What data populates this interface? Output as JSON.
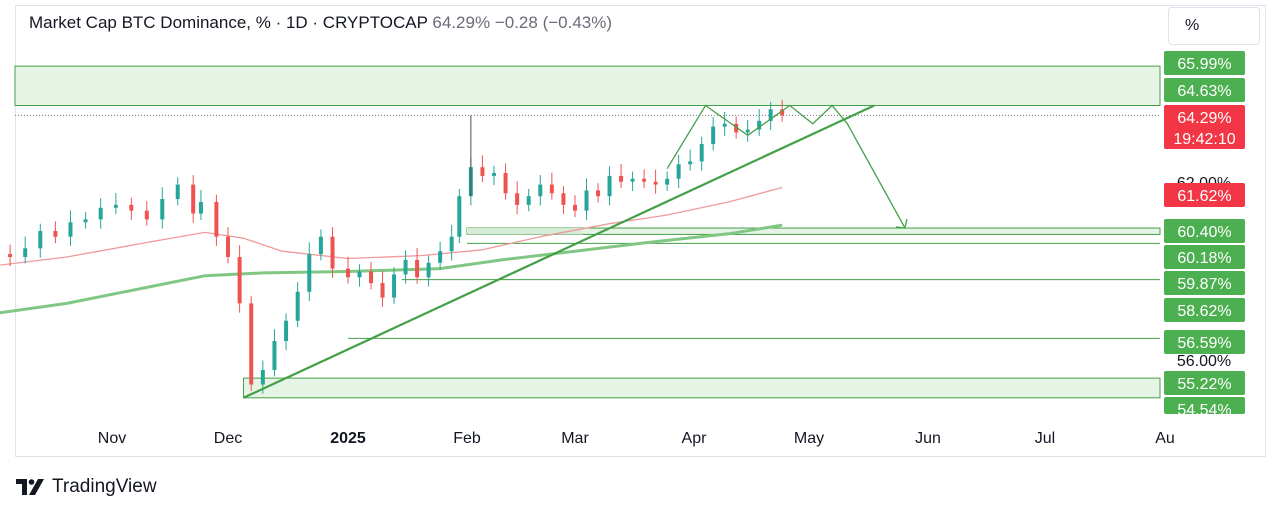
{
  "header": {
    "title": "Market Cap BTC Dominance, % · 1D · CRYPTOCAP",
    "last_value": "64.29%",
    "change": "−0.28 (−0.43%)"
  },
  "unit_button": {
    "label": "%"
  },
  "brand": {
    "name": "TradingView",
    "icon": "tradingview-logo-icon"
  },
  "colors": {
    "up": "#26a69a",
    "down": "#ef5350",
    "drawing_green": "#43a047",
    "zone_fill": "#e6f4e6",
    "ma_fast": "#ef9a9a",
    "ma_slow": "#81c784",
    "label_green": "#4caf50",
    "label_red": "#f23645"
  },
  "chart_data": {
    "type": "candlestick",
    "title": "Market Cap BTC Dominance, %",
    "interval": "1D",
    "source": "CRYPTOCAP",
    "x_axis": {
      "labels": [
        "Nov",
        "Dec",
        "2025",
        "Feb",
        "Mar",
        "Apr",
        "May",
        "Jun",
        "Jul",
        "Au"
      ],
      "bold": [
        "2025"
      ],
      "dates": [
        "2024-11-01",
        "2024-12-01",
        "2025-01-01",
        "2025-02-01",
        "2025-03-01",
        "2025-04-01",
        "2025-05-01",
        "2025-06-01",
        "2025-07-01",
        "2025-08-01"
      ]
    },
    "y_axis": {
      "unit": "%",
      "range": [
        54.2,
        66.6
      ],
      "partial_labels": [
        "62.00%",
        "56.00%"
      ]
    },
    "price_labels": [
      {
        "text": "65.99%",
        "value": 65.99,
        "color": "green"
      },
      {
        "text": "64.63%",
        "value": 64.63,
        "color": "green"
      },
      {
        "text": "64.29%",
        "sub": "19:42:10",
        "value": 64.29,
        "color": "red"
      },
      {
        "text": "61.62%",
        "value": 61.62,
        "color": "red"
      },
      {
        "text": "60.40%",
        "value": 60.4,
        "color": "green"
      },
      {
        "text": "60.18%",
        "value": 60.18,
        "color": "green"
      },
      {
        "text": "59.87%",
        "value": 59.87,
        "color": "green"
      },
      {
        "text": "58.62%",
        "value": 58.62,
        "color": "green"
      },
      {
        "text": "56.59%",
        "value": 56.59,
        "color": "green"
      },
      {
        "text": "55.22%",
        "value": 55.22,
        "color": "green"
      },
      {
        "text": "54.54%",
        "value": 54.54,
        "color": "green"
      }
    ],
    "last_price": {
      "value": 64.29,
      "countdown": "19:42:10"
    },
    "zones": [
      {
        "top": 65.99,
        "bottom": 64.63
      },
      {
        "top": 60.4,
        "bottom": 60.18
      },
      {
        "top": 55.22,
        "bottom": 54.54
      }
    ],
    "horizontal_lines": [
      59.87,
      58.62,
      56.59
    ],
    "small_zone": {
      "from": "2025-02-01",
      "to": "2025-03-03",
      "top": 60.4,
      "bottom": 60.18
    },
    "trendline": {
      "from": {
        "date": "2024-12-05",
        "value": 54.54
      },
      "to": {
        "date": "2025-05-18",
        "value": 64.63
      }
    },
    "pattern_path": [
      {
        "date": "2025-03-25",
        "value": 62.45
      },
      {
        "date": "2025-04-04",
        "value": 64.63
      },
      {
        "date": "2025-04-15",
        "value": 63.6
      },
      {
        "date": "2025-04-26",
        "value": 64.63
      },
      {
        "date": "2025-05-02",
        "value": 64.0
      },
      {
        "date": "2025-05-07",
        "value": 64.63
      },
      {
        "date": "2025-05-11",
        "value": 64.0
      },
      {
        "date": "2025-05-26",
        "value": 60.4
      }
    ],
    "arrow_end": {
      "date": "2025-05-26",
      "value": 60.4
    },
    "moving_averages": [
      {
        "color": "red",
        "points": [
          [
            "2024-10-01",
            59.1
          ],
          [
            "2024-10-20",
            59.4
          ],
          [
            "2024-11-10",
            59.9
          ],
          [
            "2024-11-25",
            60.25
          ],
          [
            "2024-12-05",
            60.05
          ],
          [
            "2024-12-15",
            59.6
          ],
          [
            "2025-01-01",
            59.35
          ],
          [
            "2025-01-20",
            59.45
          ],
          [
            "2025-02-05",
            59.65
          ],
          [
            "2025-02-20",
            60.1
          ],
          [
            "2025-03-10",
            60.55
          ],
          [
            "2025-03-25",
            60.85
          ],
          [
            "2025-04-10",
            61.3
          ],
          [
            "2025-04-24",
            61.8
          ]
        ]
      },
      {
        "color": "green",
        "points": [
          [
            "2024-10-01",
            57.45
          ],
          [
            "2024-10-20",
            57.8
          ],
          [
            "2024-11-10",
            58.35
          ],
          [
            "2024-11-25",
            58.75
          ],
          [
            "2024-12-10",
            58.85
          ],
          [
            "2025-01-01",
            58.9
          ],
          [
            "2025-01-25",
            59.0
          ],
          [
            "2025-02-10",
            59.3
          ],
          [
            "2025-03-01",
            59.6
          ],
          [
            "2025-03-20",
            59.9
          ],
          [
            "2025-04-10",
            60.2
          ],
          [
            "2025-04-24",
            60.5
          ]
        ]
      }
    ],
    "ohlc_closes": [
      [
        "2024-10-01",
        59.5
      ],
      [
        "2024-10-05",
        59.4
      ],
      [
        "2024-10-09",
        59.7
      ],
      [
        "2024-10-13",
        60.3
      ],
      [
        "2024-10-17",
        60.1
      ],
      [
        "2024-10-21",
        60.6
      ],
      [
        "2024-10-25",
        60.7
      ],
      [
        "2024-10-29",
        61.1
      ],
      [
        "2024-11-02",
        61.2
      ],
      [
        "2024-11-06",
        61.0
      ],
      [
        "2024-11-10",
        60.7
      ],
      [
        "2024-11-14",
        61.4
      ],
      [
        "2024-11-18",
        61.9
      ],
      [
        "2024-11-22",
        60.9
      ],
      [
        "2024-11-24",
        61.3
      ],
      [
        "2024-11-28",
        60.1
      ],
      [
        "2024-12-01",
        59.4
      ],
      [
        "2024-12-04",
        57.8
      ],
      [
        "2024-12-07",
        55.0
      ],
      [
        "2024-12-10",
        55.5
      ],
      [
        "2024-12-13",
        56.5
      ],
      [
        "2024-12-16",
        57.2
      ],
      [
        "2024-12-19",
        58.2
      ],
      [
        "2024-12-22",
        59.5
      ],
      [
        "2024-12-25",
        60.1
      ],
      [
        "2024-12-28",
        59.0
      ],
      [
        "2025-01-01",
        58.7
      ],
      [
        "2025-01-04",
        58.9
      ],
      [
        "2025-01-07",
        58.5
      ],
      [
        "2025-01-10",
        58.0
      ],
      [
        "2025-01-13",
        58.8
      ],
      [
        "2025-01-16",
        59.3
      ],
      [
        "2025-01-19",
        58.7
      ],
      [
        "2025-01-22",
        59.2
      ],
      [
        "2025-01-25",
        59.6
      ],
      [
        "2025-01-28",
        60.1
      ],
      [
        "2025-01-30",
        61.5
      ],
      [
        "2025-02-02",
        62.5
      ],
      [
        "2025-02-05",
        62.2
      ],
      [
        "2025-02-08",
        62.3
      ],
      [
        "2025-02-11",
        61.6
      ],
      [
        "2025-02-14",
        61.2
      ],
      [
        "2025-02-17",
        61.5
      ],
      [
        "2025-02-20",
        61.9
      ],
      [
        "2025-02-23",
        61.6
      ],
      [
        "2025-02-26",
        61.2
      ],
      [
        "2025-03-01",
        61.0
      ],
      [
        "2025-03-04",
        61.7
      ],
      [
        "2025-03-07",
        61.5
      ],
      [
        "2025-03-10",
        62.2
      ],
      [
        "2025-03-13",
        62.0
      ],
      [
        "2025-03-16",
        62.1
      ],
      [
        "2025-03-19",
        62.0
      ],
      [
        "2025-03-22",
        61.9
      ],
      [
        "2025-03-25",
        62.1
      ],
      [
        "2025-03-28",
        62.6
      ],
      [
        "2025-03-31",
        62.7
      ],
      [
        "2025-04-03",
        63.3
      ],
      [
        "2025-04-06",
        63.9
      ],
      [
        "2025-04-09",
        64.0
      ],
      [
        "2025-04-12",
        63.7
      ],
      [
        "2025-04-15",
        63.8
      ],
      [
        "2025-04-18",
        64.1
      ],
      [
        "2025-04-21",
        64.5
      ],
      [
        "2025-04-24",
        64.29
      ]
    ]
  }
}
